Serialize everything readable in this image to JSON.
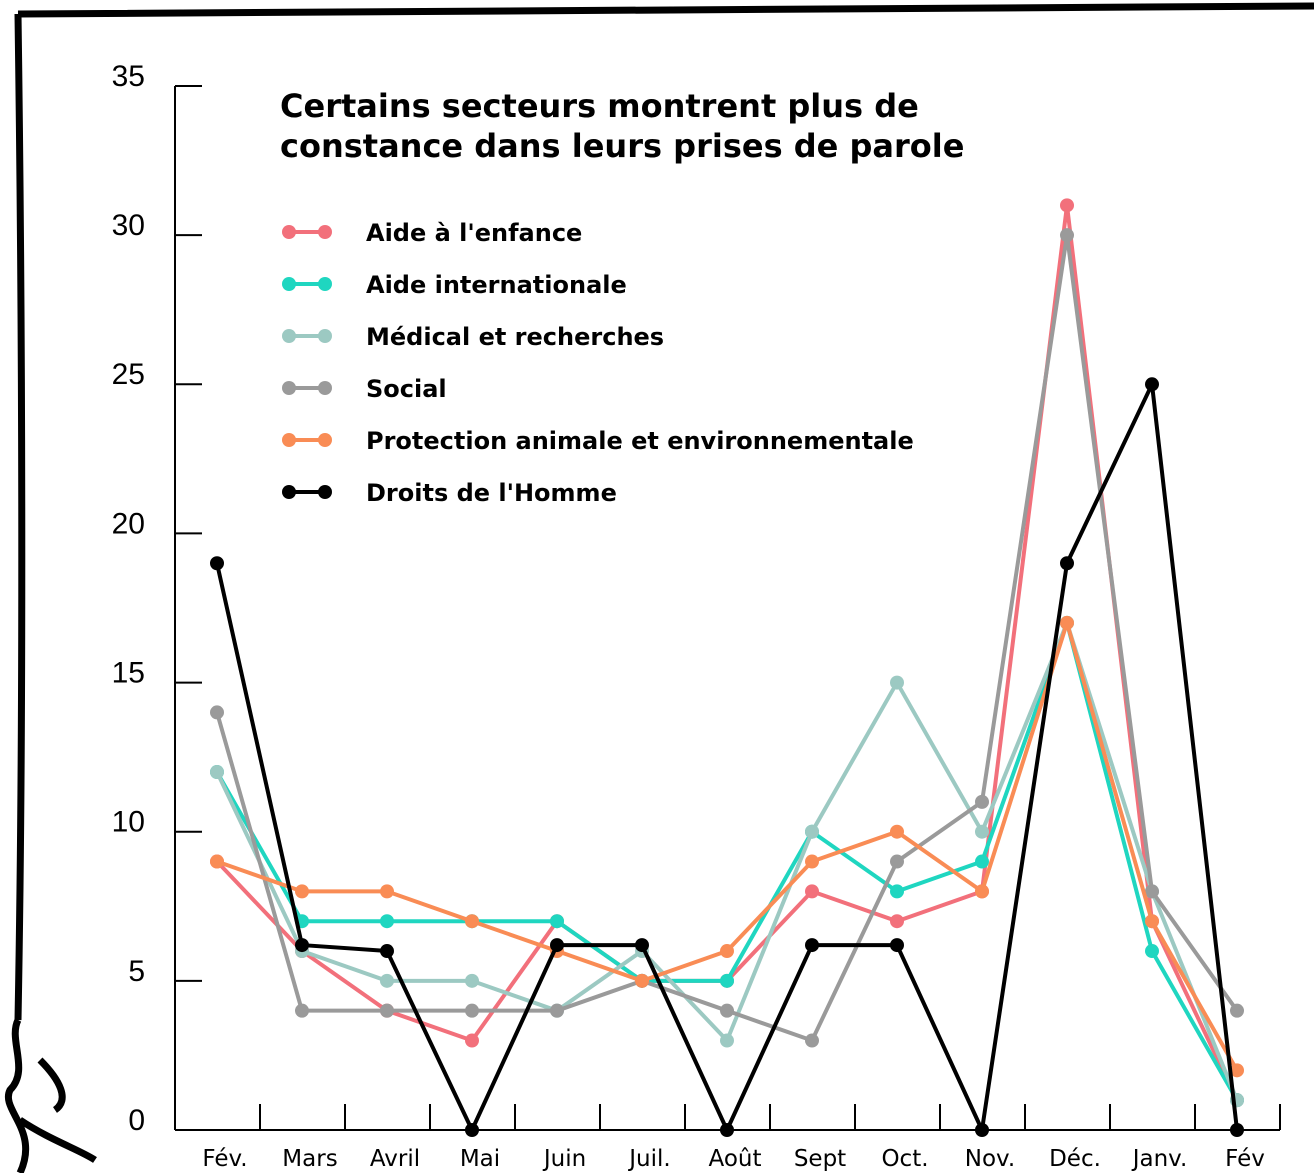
{
  "chart_data": {
    "type": "line",
    "title": "Certains secteurs montrent plus de constance dans leurs prises de parole",
    "categories": [
      "Fév.",
      "Mars",
      "Avril",
      "Mai",
      "Juin",
      "Juil.",
      "Août",
      "Sept",
      "Oct.",
      "Nov.",
      "Déc.",
      "Janv.",
      "Fév"
    ],
    "series": [
      {
        "name": "Aide à l'enfance",
        "color": "#f2707b",
        "values": [
          9,
          6,
          4,
          3,
          7,
          5,
          5,
          8,
          7,
          8,
          31,
          7,
          1
        ]
      },
      {
        "name": "Aide internationale",
        "color": "#1fd6c0",
        "values": [
          12,
          7,
          7,
          7,
          7,
          5,
          5,
          10,
          8,
          9,
          17,
          6,
          1
        ]
      },
      {
        "name": "Médical et recherches",
        "color": "#9cc9c2",
        "values": [
          12,
          6,
          5,
          5,
          4,
          6,
          3,
          10,
          15,
          10,
          17,
          8,
          1
        ]
      },
      {
        "name": "Social",
        "color": "#9a9a9a",
        "values": [
          14,
          4,
          4,
          4,
          4,
          5,
          4,
          3,
          9,
          11,
          30,
          8,
          4
        ]
      },
      {
        "name": "Protection animale et environnementale",
        "color": "#f98c55",
        "values": [
          9,
          8,
          8,
          7,
          6,
          5,
          6,
          9,
          10,
          8,
          17,
          7,
          2
        ]
      },
      {
        "name": "Droits de l'Homme",
        "color": "#000000",
        "values": [
          19,
          6.2,
          6,
          0,
          6.2,
          6.2,
          0,
          6.2,
          6.2,
          0,
          19,
          25,
          0
        ]
      }
    ],
    "ylim": [
      0,
      35
    ],
    "yticks": [
      0,
      5,
      10,
      15,
      20,
      25,
      30,
      35
    ],
    "grid": false,
    "legend": "upper-left"
  }
}
